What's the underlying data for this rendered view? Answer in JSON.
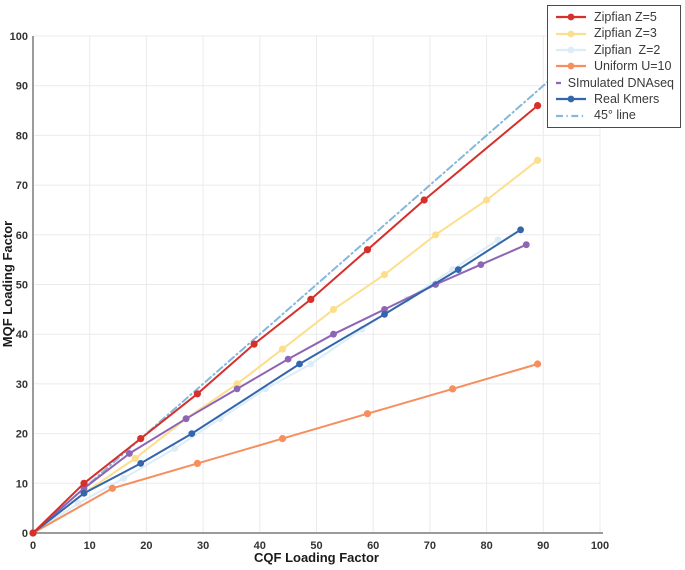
{
  "chart_data": {
    "type": "line",
    "title": "",
    "xlabel": "CQF Loading Factor",
    "ylabel": "MQF Loading Factor",
    "xlim": [
      0,
      100
    ],
    "ylim": [
      0,
      100
    ],
    "x_ticks": [
      0,
      10,
      20,
      30,
      40,
      50,
      60,
      70,
      80,
      90,
      100
    ],
    "y_ticks": [
      0,
      10,
      20,
      30,
      40,
      50,
      60,
      70,
      80,
      90,
      100
    ],
    "grid": true,
    "legend_position": "top-right",
    "colors": {
      "background": "#ffffff",
      "grid": "#ebebeb",
      "axis": "#9b9b9b",
      "tick_text": "#333333",
      "legend_border": "#4a4a4a",
      "legend_text": "#3a3a3a"
    },
    "series": [
      {
        "name": "Zipfian Z=5",
        "color": "#d6302b",
        "dash": "solid",
        "marker": "circle",
        "marker_size": 3.6,
        "zorder": 7,
        "points": [
          [
            0,
            0
          ],
          [
            9,
            10
          ],
          [
            19,
            19
          ],
          [
            29,
            28
          ],
          [
            39,
            38
          ],
          [
            49,
            47
          ],
          [
            59,
            57
          ],
          [
            69,
            67
          ],
          [
            89,
            86
          ]
        ]
      },
      {
        "name": "Zipfian Z=3",
        "color": "#fcdf8d",
        "dash": "solid",
        "marker": "circle",
        "marker_size": 3.6,
        "zorder": 3,
        "points": [
          [
            0,
            0
          ],
          [
            9,
            8
          ],
          [
            18,
            15
          ],
          [
            27,
            23
          ],
          [
            36,
            30
          ],
          [
            44,
            37
          ],
          [
            53,
            45
          ],
          [
            62,
            52
          ],
          [
            71,
            60
          ],
          [
            80,
            67
          ],
          [
            89,
            75
          ]
        ]
      },
      {
        "name": "Zipfian  Z=2",
        "color": "#dcedf8",
        "dash": "solid",
        "marker": "circle",
        "marker_size": 3.4,
        "zorder": 1,
        "points": [
          [
            0,
            0
          ],
          [
            8,
            6
          ],
          [
            16,
            11
          ],
          [
            25,
            17
          ],
          [
            33,
            23
          ],
          [
            41,
            29
          ],
          [
            49,
            34
          ],
          [
            58,
            41
          ],
          [
            66,
            47
          ],
          [
            74,
            53
          ],
          [
            82,
            59
          ]
        ]
      },
      {
        "name": "Uniform U=10",
        "color": "#f68e5e",
        "dash": "solid",
        "marker": "circle",
        "marker_size": 3.6,
        "zorder": 4,
        "points": [
          [
            0,
            0
          ],
          [
            14,
            9
          ],
          [
            29,
            14
          ],
          [
            44,
            19
          ],
          [
            59,
            24
          ],
          [
            74,
            29
          ],
          [
            89,
            34
          ]
        ]
      },
      {
        "name": "SImulated DNAseq",
        "color": "#8e64b5",
        "dash": "solid",
        "marker": "circle",
        "marker_size": 3.4,
        "zorder": 5,
        "points": [
          [
            0,
            0
          ],
          [
            9,
            9
          ],
          [
            17,
            16
          ],
          [
            27,
            23
          ],
          [
            36,
            29
          ],
          [
            45,
            35
          ],
          [
            53,
            40
          ],
          [
            62,
            45
          ],
          [
            71,
            50
          ],
          [
            79,
            54
          ],
          [
            87,
            58
          ]
        ]
      },
      {
        "name": "Real Kmers",
        "color": "#3366ad",
        "dash": "solid",
        "marker": "circle",
        "marker_size": 3.4,
        "zorder": 6,
        "points": [
          [
            0,
            0
          ],
          [
            9,
            8
          ],
          [
            19,
            14
          ],
          [
            28,
            20
          ],
          [
            47,
            34
          ],
          [
            62,
            44
          ],
          [
            75,
            53
          ],
          [
            86,
            61
          ]
        ]
      },
      {
        "name": "45° line",
        "color": "#85b8dc",
        "dash": "dashdot",
        "marker": "none",
        "marker_size": 0,
        "zorder": 2,
        "points": [
          [
            0,
            0
          ],
          [
            91,
            91
          ]
        ]
      }
    ]
  }
}
